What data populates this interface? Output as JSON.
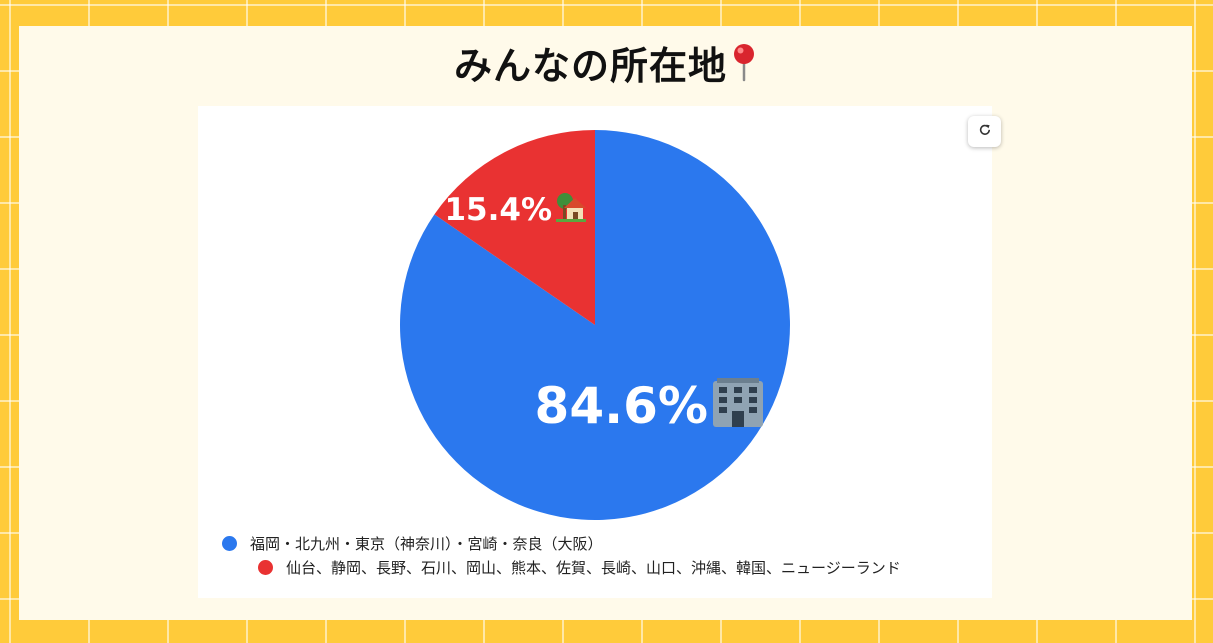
{
  "page": {
    "title": "みんなの所在地"
  },
  "colors": {
    "background": "#ffcb3a",
    "panel": "#fffaea",
    "series_a": "#2b78ee",
    "series_b": "#e93232"
  },
  "icons": {
    "title": "round-pushpin-icon",
    "refresh": "refresh-icon",
    "slice_a": "office-building-icon",
    "slice_b": "house-with-garden-icon"
  },
  "chart_data": {
    "type": "pie",
    "title": "",
    "legend_position": "bottom-left",
    "slices": [
      {
        "label": "福岡・北九州・東京（神奈川）・宮崎・奈良（大阪）",
        "value": 84.6,
        "display": "84.6%",
        "color": "#2b78ee"
      },
      {
        "label": "仙台、静岡、長野、石川、岡山、熊本、佐賀、長崎、山口、沖縄、韓国、ニュージーランド",
        "value": 15.4,
        "display": "15.4%",
        "color": "#e93232"
      }
    ]
  }
}
